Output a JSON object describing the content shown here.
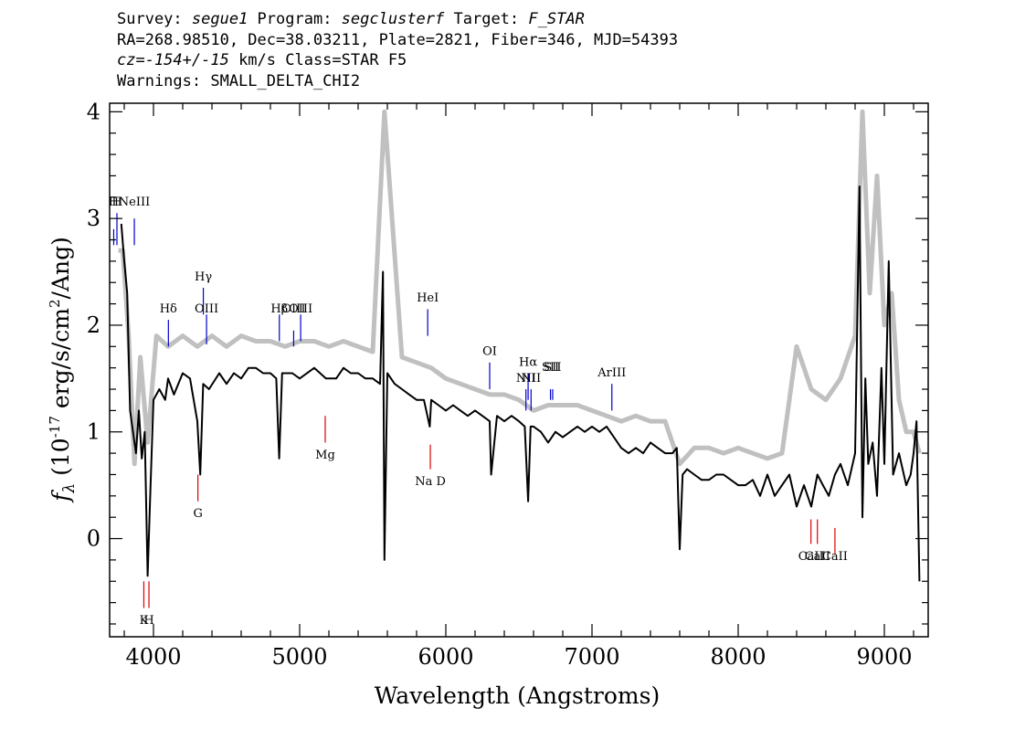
{
  "header": {
    "line1": [
      {
        "t": "Survey: "
      },
      {
        "t": "segue1",
        "i": true
      },
      {
        "t": " Program: "
      },
      {
        "t": "segclusterf",
        "i": true
      },
      {
        "t": " Target: "
      },
      {
        "t": "F_STAR",
        "i": true
      }
    ],
    "line2": [
      {
        "t": "RA=268.98510, Dec=38.03211, Plate=2821, Fiber=346, MJD=54393"
      }
    ],
    "line3": [
      {
        "t": "cz=-154+/-15",
        "i": true
      },
      {
        "t": " km/s Class=STAR F5"
      }
    ],
    "line4": [
      {
        "t": "Warnings: SMALL_DELTA_CHI2"
      }
    ]
  },
  "chart_data": {
    "type": "line",
    "xlabel": "Wavelength (Angstroms)",
    "ylabel_parts": {
      "f": "f",
      "sub": "λ",
      "open": " (10",
      "exp1": "-17",
      "mid": " erg/s/cm",
      "exp2": "2",
      "close": "/Ang)"
    },
    "xlim": [
      3700,
      9300
    ],
    "ylim": [
      -0.92,
      4.08
    ],
    "xticks": [
      4000,
      5000,
      6000,
      7000,
      8000,
      9000
    ],
    "yticks": [
      0,
      1,
      2,
      3,
      4
    ],
    "xtick_labels": [
      "4000",
      "5000",
      "6000",
      "7000",
      "8000",
      "9000"
    ],
    "ytick_labels": [
      "0",
      "1",
      "2",
      "3",
      "4"
    ],
    "xminor_step": 200,
    "yminor_step": 0.2,
    "series": [
      {
        "role": "flux",
        "color": "#000000",
        "x": [
          3780,
          3800,
          3820,
          3840,
          3860,
          3880,
          3900,
          3920,
          3940,
          3960,
          3980,
          4000,
          4040,
          4080,
          4100,
          4140,
          4200,
          4250,
          4300,
          4320,
          4340,
          4380,
          4450,
          4500,
          4550,
          4600,
          4650,
          4700,
          4750,
          4800,
          4840,
          4860,
          4880,
          4950,
          5000,
          5100,
          5180,
          5250,
          5300,
          5350,
          5400,
          5450,
          5500,
          5550,
          5570,
          5580,
          5600,
          5650,
          5700,
          5750,
          5800,
          5850,
          5890,
          5900,
          5950,
          6000,
          6050,
          6100,
          6150,
          6200,
          6250,
          6300,
          6310,
          6350,
          6400,
          6450,
          6500,
          6540,
          6563,
          6580,
          6600,
          6650,
          6700,
          6750,
          6800,
          6850,
          6900,
          6950,
          7000,
          7050,
          7100,
          7150,
          7200,
          7250,
          7300,
          7350,
          7400,
          7450,
          7500,
          7550,
          7580,
          7600,
          7620,
          7650,
          7700,
          7750,
          7800,
          7850,
          7900,
          7950,
          8000,
          8050,
          8100,
          8150,
          8200,
          8250,
          8300,
          8350,
          8400,
          8450,
          8500,
          8542,
          8580,
          8620,
          8662,
          8700,
          8750,
          8800,
          8830,
          8850,
          8870,
          8890,
          8920,
          8950,
          8980,
          9000,
          9030,
          9060,
          9100,
          9150,
          9180,
          9200,
          9220,
          9240
        ],
        "y": [
          2.95,
          2.6,
          2.3,
          1.2,
          1.0,
          0.8,
          1.2,
          0.75,
          1.0,
          -0.35,
          0.5,
          1.3,
          1.4,
          1.3,
          1.5,
          1.35,
          1.55,
          1.5,
          1.1,
          0.6,
          1.45,
          1.4,
          1.55,
          1.45,
          1.55,
          1.5,
          1.6,
          1.6,
          1.55,
          1.55,
          1.5,
          0.75,
          1.55,
          1.55,
          1.5,
          1.6,
          1.5,
          1.5,
          1.6,
          1.55,
          1.55,
          1.5,
          1.5,
          1.45,
          2.5,
          -0.2,
          1.55,
          1.45,
          1.4,
          1.35,
          1.3,
          1.3,
          1.05,
          1.3,
          1.25,
          1.2,
          1.25,
          1.2,
          1.15,
          1.2,
          1.15,
          1.1,
          0.6,
          1.15,
          1.1,
          1.15,
          1.1,
          1.05,
          0.35,
          1.05,
          1.05,
          1.0,
          0.9,
          1.0,
          0.95,
          1.0,
          1.05,
          1.0,
          1.05,
          1.0,
          1.05,
          0.95,
          0.85,
          0.8,
          0.85,
          0.8,
          0.9,
          0.85,
          0.8,
          0.8,
          0.85,
          -0.1,
          0.6,
          0.65,
          0.6,
          0.55,
          0.55,
          0.6,
          0.6,
          0.55,
          0.5,
          0.5,
          0.55,
          0.4,
          0.6,
          0.4,
          0.5,
          0.6,
          0.3,
          0.5,
          0.3,
          0.6,
          0.5,
          0.4,
          0.6,
          0.7,
          0.5,
          0.8,
          3.3,
          0.2,
          1.5,
          0.7,
          0.9,
          0.4,
          1.6,
          0.7,
          2.6,
          0.6,
          0.8,
          0.5,
          0.6,
          0.8,
          1.1,
          -0.4
        ]
      },
      {
        "role": "error",
        "color": "#c0c0c0",
        "x": [
          3760,
          3790,
          3830,
          3870,
          3910,
          3960,
          4020,
          4100,
          4200,
          4300,
          4400,
          4500,
          4600,
          4700,
          4800,
          4900,
          5000,
          5100,
          5200,
          5300,
          5400,
          5500,
          5580,
          5700,
          5800,
          5900,
          6000,
          6100,
          6200,
          6300,
          6400,
          6500,
          6600,
          6700,
          6800,
          6900,
          7000,
          7100,
          7200,
          7300,
          7400,
          7500,
          7600,
          7700,
          7800,
          7900,
          8000,
          8100,
          8200,
          8300,
          8400,
          8500,
          8600,
          8700,
          8800,
          8850,
          8900,
          8950,
          9000,
          9050,
          9100,
          9150,
          9200,
          9240
        ],
        "y": [
          2.7,
          2.7,
          1.9,
          0.7,
          1.7,
          0.9,
          1.9,
          1.8,
          1.9,
          1.8,
          1.9,
          1.8,
          1.9,
          1.85,
          1.85,
          1.8,
          1.85,
          1.85,
          1.8,
          1.85,
          1.8,
          1.75,
          4.0,
          1.7,
          1.65,
          1.6,
          1.5,
          1.45,
          1.4,
          1.35,
          1.35,
          1.3,
          1.2,
          1.25,
          1.25,
          1.25,
          1.2,
          1.15,
          1.1,
          1.15,
          1.1,
          1.1,
          0.7,
          0.85,
          0.85,
          0.8,
          0.85,
          0.8,
          0.75,
          0.8,
          1.8,
          1.4,
          1.3,
          1.5,
          1.9,
          4.0,
          2.3,
          3.4,
          2.0,
          2.3,
          1.3,
          1.0,
          1.0,
          0.8
        ]
      }
    ],
    "emission_lines": [
      {
        "label": "H",
        "x": 3728,
        "top": 2.9,
        "bottom": 2.75,
        "label_y": 3.12
      },
      {
        "label": "H",
        "x": 3750,
        "top": 3.05,
        "bottom": 2.75,
        "label_y": 3.12
      },
      {
        "label": "NeIII",
        "x": 3869,
        "top": 3.0,
        "bottom": 2.75,
        "label_y": 3.12
      },
      {
        "label": "Hδ",
        "x": 4102,
        "top": 2.05,
        "bottom": 1.8,
        "label_y": 2.12
      },
      {
        "label": "Hγ",
        "x": 4341,
        "top": 2.35,
        "bottom": 2.1,
        "label_y": 2.42
      },
      {
        "label": "OIII",
        "x": 4363,
        "top": 2.1,
        "bottom": 1.82,
        "label_y": 2.12
      },
      {
        "label": "Hβ",
        "x": 4861,
        "top": 2.1,
        "bottom": 1.85,
        "label_y": 2.12
      },
      {
        "label": "OIII",
        "x": 4959,
        "top": 1.95,
        "bottom": 1.8,
        "label_y": 2.12
      },
      {
        "label": "OIII",
        "x": 5007,
        "top": 2.1,
        "bottom": 1.85,
        "label_y": 2.12
      },
      {
        "label": "HeI",
        "x": 5876,
        "top": 2.15,
        "bottom": 1.9,
        "label_y": 2.22
      },
      {
        "label": "OI",
        "x": 6300,
        "top": 1.65,
        "bottom": 1.4,
        "label_y": 1.72
      },
      {
        "label": "NII",
        "x": 6548,
        "top": 1.4,
        "bottom": 1.2,
        "label_y": 1.47
      },
      {
        "label": "Hα",
        "x": 6563,
        "top": 1.55,
        "bottom": 1.3,
        "label_y": 1.62
      },
      {
        "label": "NII",
        "x": 6583,
        "top": 1.4,
        "bottom": 1.2,
        "label_y": 1.47
      },
      {
        "label": "SII",
        "x": 6716,
        "top": 1.4,
        "bottom": 1.3,
        "label_y": 1.57
      },
      {
        "label": "SII",
        "x": 6731,
        "top": 1.4,
        "bottom": 1.3,
        "label_y": 1.57
      },
      {
        "label": "ArIII",
        "x": 7136,
        "top": 1.45,
        "bottom": 1.2,
        "label_y": 1.52
      }
    ],
    "absorption_lines": [
      {
        "label": "K",
        "x": 3934,
        "top": -0.4,
        "bottom": -0.65,
        "label_y": -0.8
      },
      {
        "label": "H",
        "x": 3969,
        "top": -0.4,
        "bottom": -0.65,
        "label_y": -0.8
      },
      {
        "label": "G",
        "x": 4304,
        "top": 0.6,
        "bottom": 0.35,
        "label_y": 0.2
      },
      {
        "label": "Mg",
        "x": 5175,
        "top": 1.15,
        "bottom": 0.9,
        "label_y": 0.75
      },
      {
        "label": "Na D",
        "x": 5894,
        "top": 0.88,
        "bottom": 0.65,
        "label_y": 0.5
      },
      {
        "label": "CaII",
        "x": 8498,
        "top": 0.18,
        "bottom": -0.05,
        "label_y": -0.2
      },
      {
        "label": "CaII",
        "x": 8542,
        "top": 0.18,
        "bottom": -0.05,
        "label_y": -0.2
      },
      {
        "label": "CaII",
        "x": 8662,
        "top": 0.1,
        "bottom": -0.15,
        "label_y": -0.2
      }
    ],
    "emission_color": "#0000cc",
    "absorption_color": "#dd0000"
  }
}
